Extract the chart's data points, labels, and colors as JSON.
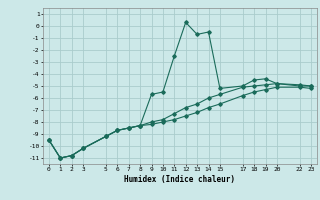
{
  "xlabel": "Humidex (Indice chaleur)",
  "background_color": "#cce8e8",
  "grid_color": "#aacccc",
  "line_color": "#1a6b5a",
  "xlim": [
    -0.5,
    23.5
  ],
  "ylim": [
    -11.5,
    1.5
  ],
  "xticks": [
    0,
    1,
    2,
    3,
    5,
    6,
    7,
    8,
    9,
    10,
    11,
    12,
    13,
    14,
    15,
    17,
    18,
    19,
    20,
    22,
    23
  ],
  "yticks": [
    1,
    0,
    -1,
    -2,
    -3,
    -4,
    -5,
    -6,
    -7,
    -8,
    -9,
    -10,
    -11
  ],
  "series": [
    {
      "x": [
        0,
        1,
        2,
        3,
        5,
        6,
        7,
        8,
        9,
        10,
        11,
        12,
        13,
        14,
        15,
        17,
        18,
        19,
        20,
        22,
        23
      ],
      "y": [
        -9.5,
        -11.0,
        -10.8,
        -10.2,
        -9.2,
        -8.7,
        -8.5,
        -8.3,
        -5.7,
        -5.5,
        -2.5,
        0.3,
        -0.7,
        -0.5,
        -5.2,
        -5.0,
        -4.5,
        -4.4,
        -4.8,
        -5.0,
        -5.0
      ]
    },
    {
      "x": [
        0,
        1,
        2,
        3,
        5,
        6,
        7,
        8,
        9,
        10,
        11,
        12,
        13,
        14,
        15,
        17,
        18,
        19,
        20,
        22,
        23
      ],
      "y": [
        -9.5,
        -11.0,
        -10.8,
        -10.2,
        -9.2,
        -8.7,
        -8.5,
        -8.3,
        -8.0,
        -7.8,
        -7.3,
        -6.8,
        -6.5,
        -6.0,
        -5.7,
        -5.1,
        -5.0,
        -4.9,
        -4.8,
        -4.9,
        -5.0
      ]
    },
    {
      "x": [
        0,
        1,
        2,
        3,
        5,
        6,
        7,
        8,
        9,
        10,
        11,
        12,
        13,
        14,
        15,
        17,
        18,
        19,
        20,
        22,
        23
      ],
      "y": [
        -9.5,
        -11.0,
        -10.8,
        -10.2,
        -9.2,
        -8.7,
        -8.5,
        -8.3,
        -8.2,
        -8.0,
        -7.8,
        -7.5,
        -7.2,
        -6.8,
        -6.5,
        -5.8,
        -5.5,
        -5.3,
        -5.1,
        -5.1,
        -5.2
      ]
    }
  ]
}
